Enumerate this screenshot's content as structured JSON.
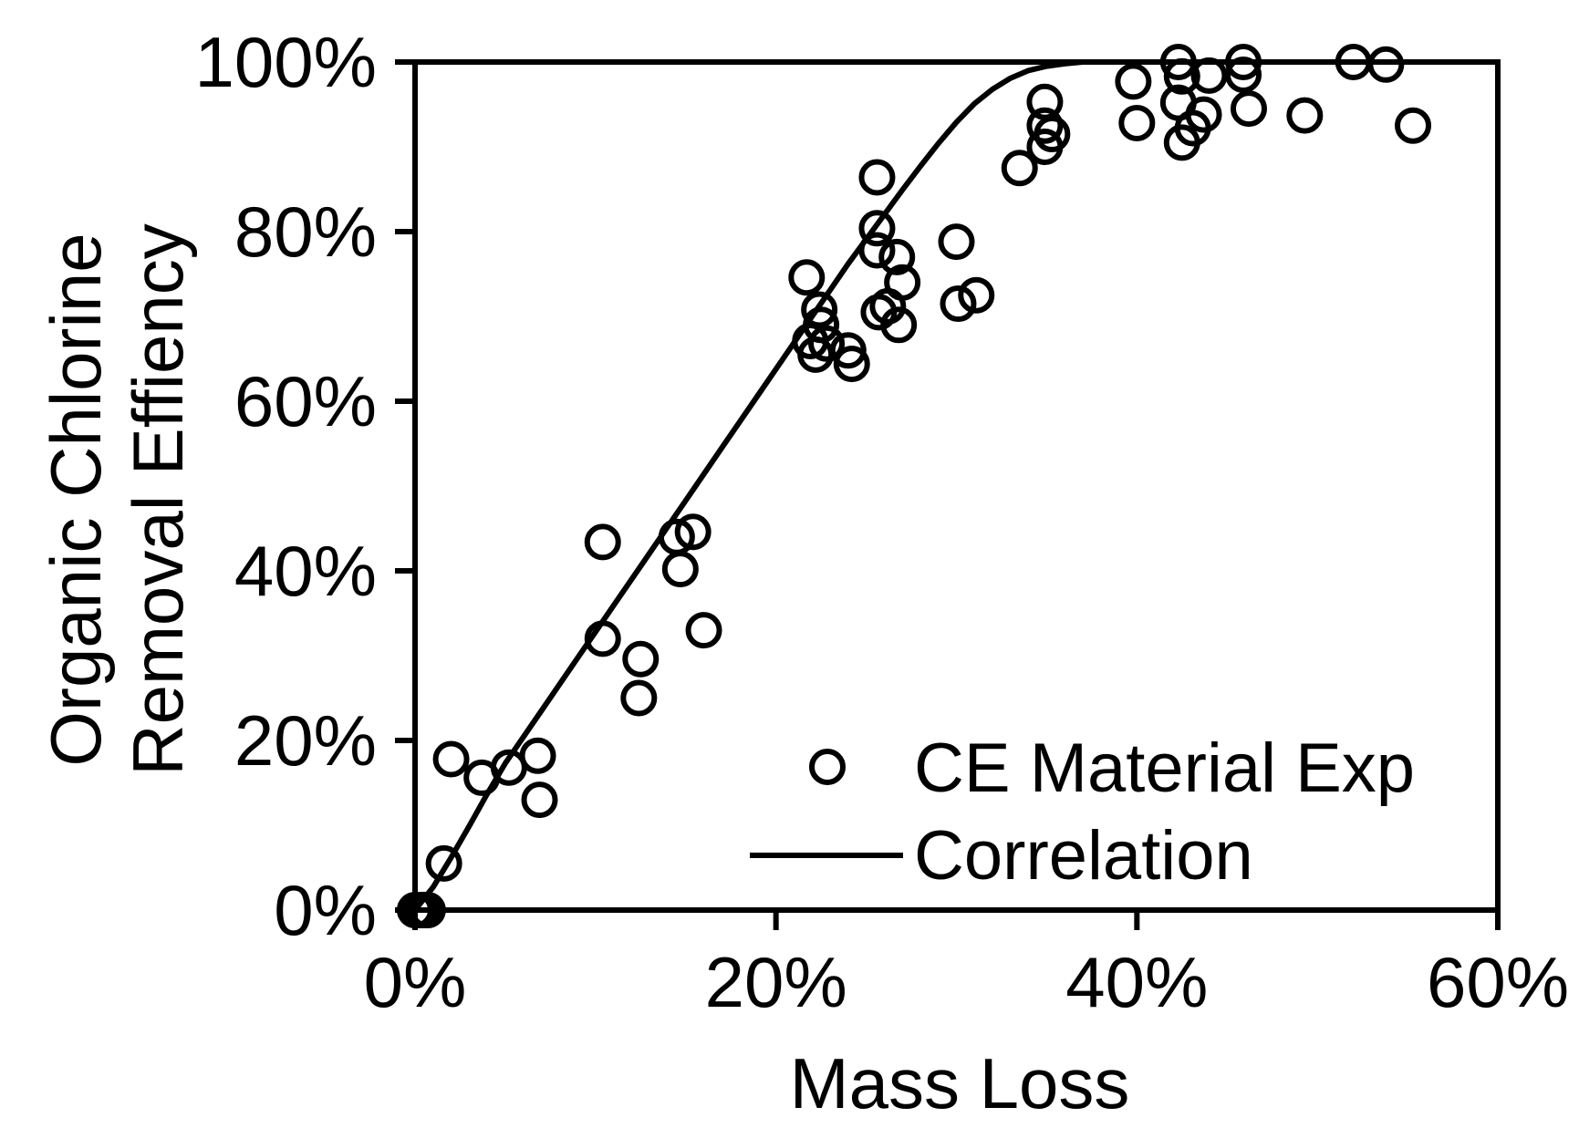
{
  "chart_data": {
    "type": "scatter",
    "title": "",
    "xlabel": "Mass Loss",
    "ylabel_lines": [
      "Organic Chlorine",
      "Removal Effiency"
    ],
    "xlim": [
      0,
      0.6
    ],
    "ylim": [
      0,
      1.0
    ],
    "x_ticks": [
      0,
      0.2,
      0.4,
      0.6
    ],
    "x_tick_labels": [
      "0%",
      "20%",
      "40%",
      "60%"
    ],
    "y_ticks": [
      0,
      0.2,
      0.4,
      0.6,
      0.8,
      1.0
    ],
    "y_tick_labels": [
      "0%",
      "20%",
      "40%",
      "60%",
      "80%",
      "100%"
    ],
    "grid": false,
    "legend_position": "bottom-right",
    "series": [
      {
        "name": "CE Material Exp",
        "kind": "scatter",
        "marker": "open-circle",
        "points": [
          [
            0.0,
            0.0
          ],
          [
            0.003,
            0.0
          ],
          [
            0.005,
            0.0
          ],
          [
            0.007,
            0.0
          ],
          [
            0.016,
            0.055
          ],
          [
            0.02,
            0.178
          ],
          [
            0.037,
            0.156
          ],
          [
            0.052,
            0.168
          ],
          [
            0.068,
            0.182
          ],
          [
            0.069,
            0.13
          ],
          [
            0.104,
            0.434
          ],
          [
            0.104,
            0.32
          ],
          [
            0.125,
            0.296
          ],
          [
            0.124,
            0.25
          ],
          [
            0.145,
            0.44
          ],
          [
            0.147,
            0.402
          ],
          [
            0.154,
            0.446
          ],
          [
            0.16,
            0.33
          ],
          [
            0.217,
            0.746
          ],
          [
            0.219,
            0.671
          ],
          [
            0.224,
            0.708
          ],
          [
            0.225,
            0.69
          ],
          [
            0.222,
            0.655
          ],
          [
            0.228,
            0.668
          ],
          [
            0.24,
            0.66
          ],
          [
            0.242,
            0.644
          ],
          [
            0.256,
            0.864
          ],
          [
            0.256,
            0.804
          ],
          [
            0.256,
            0.778
          ],
          [
            0.257,
            0.705
          ],
          [
            0.262,
            0.712
          ],
          [
            0.267,
            0.77
          ],
          [
            0.27,
            0.74
          ],
          [
            0.268,
            0.69
          ],
          [
            0.3,
            0.788
          ],
          [
            0.301,
            0.715
          ],
          [
            0.311,
            0.725
          ],
          [
            0.335,
            0.875
          ],
          [
            0.349,
            0.953
          ],
          [
            0.349,
            0.9
          ],
          [
            0.349,
            0.925
          ],
          [
            0.353,
            0.915
          ],
          [
            0.398,
            0.977
          ],
          [
            0.4,
            0.928
          ],
          [
            0.423,
            1.0
          ],
          [
            0.423,
            0.952
          ],
          [
            0.425,
            0.983
          ],
          [
            0.425,
            0.905
          ],
          [
            0.431,
            0.922
          ],
          [
            0.437,
            0.938
          ],
          [
            0.44,
            0.984
          ],
          [
            0.459,
            1.0
          ],
          [
            0.459,
            0.985
          ],
          [
            0.462,
            0.945
          ],
          [
            0.493,
            0.937
          ],
          [
            0.52,
            1.0
          ],
          [
            0.538,
            0.997
          ],
          [
            0.553,
            0.925
          ]
        ]
      },
      {
        "name": "Correlation",
        "kind": "line",
        "points": [
          [
            0.0,
            0.0
          ],
          [
            0.01,
            0.027
          ],
          [
            0.02,
            0.062
          ],
          [
            0.03,
            0.099
          ],
          [
            0.04,
            0.137
          ],
          [
            0.05,
            0.173
          ],
          [
            0.06,
            0.204
          ],
          [
            0.07,
            0.235
          ],
          [
            0.08,
            0.266
          ],
          [
            0.09,
            0.297
          ],
          [
            0.1,
            0.328
          ],
          [
            0.11,
            0.359
          ],
          [
            0.12,
            0.39
          ],
          [
            0.13,
            0.421
          ],
          [
            0.14,
            0.452
          ],
          [
            0.15,
            0.483
          ],
          [
            0.16,
            0.514
          ],
          [
            0.17,
            0.545
          ],
          [
            0.18,
            0.576
          ],
          [
            0.19,
            0.607
          ],
          [
            0.2,
            0.638
          ],
          [
            0.21,
            0.669
          ],
          [
            0.22,
            0.7
          ],
          [
            0.23,
            0.731
          ],
          [
            0.24,
            0.762
          ],
          [
            0.25,
            0.791
          ],
          [
            0.26,
            0.82
          ],
          [
            0.27,
            0.849
          ],
          [
            0.28,
            0.877
          ],
          [
            0.29,
            0.904
          ],
          [
            0.3,
            0.929
          ],
          [
            0.31,
            0.951
          ],
          [
            0.32,
            0.968
          ],
          [
            0.33,
            0.981
          ],
          [
            0.34,
            0.99
          ],
          [
            0.35,
            0.995
          ],
          [
            0.36,
            0.998
          ],
          [
            0.37,
            1.0
          ],
          [
            0.4,
            1.0
          ],
          [
            0.45,
            1.0
          ],
          [
            0.5,
            1.0
          ],
          [
            0.55,
            1.0
          ],
          [
            0.57,
            1.0
          ]
        ]
      }
    ]
  },
  "legend": {
    "exp_label": "CE Material Exp",
    "corr_label": "Correlation"
  },
  "colors": {
    "ink": "#000000",
    "background": "#ffffff"
  }
}
